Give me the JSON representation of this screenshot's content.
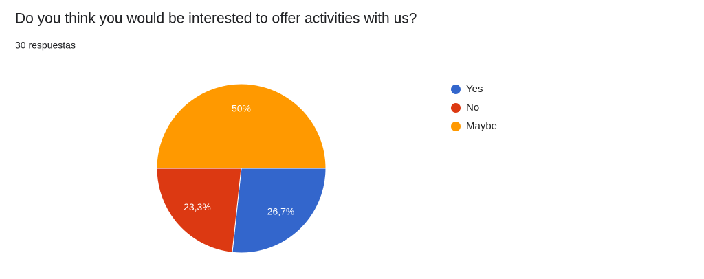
{
  "chart_data": {
    "type": "pie",
    "title": "Do you think you would be interested to offer activities with us?",
    "subtitle": "30 respuestas",
    "categories": [
      "Yes",
      "No",
      "Maybe"
    ],
    "values": [
      26.7,
      23.3,
      50
    ],
    "value_labels": [
      "26,7%",
      "23,3%",
      "50%"
    ],
    "colors": [
      "#3366cc",
      "#dc3912",
      "#ff9900"
    ],
    "legend": "right"
  }
}
